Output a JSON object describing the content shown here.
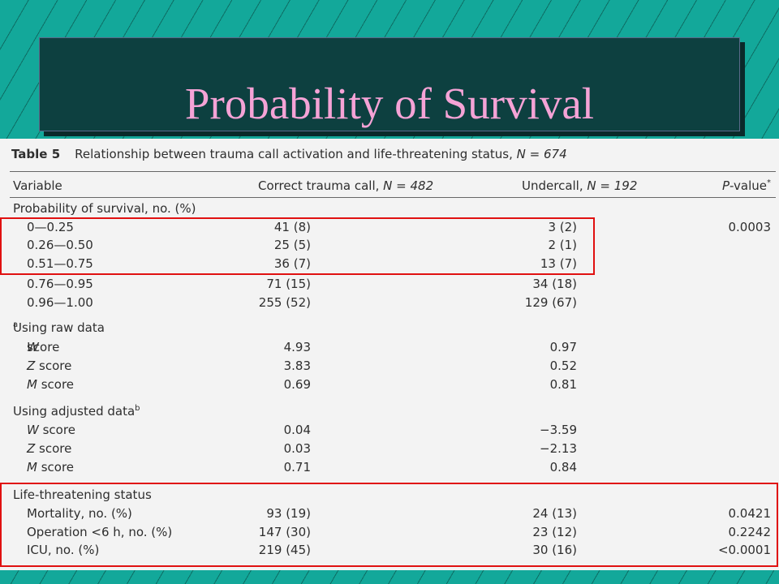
{
  "slide_title": "Probability of Survival",
  "table": {
    "caption_label": "Table 5",
    "caption_text": "Relationship between trauma call activation and life-threatening status,",
    "caption_n": "N = 674",
    "headers": {
      "variable": "Variable",
      "correct": "Correct trauma call,",
      "correct_n": "N = 482",
      "undercall": "Undercall,",
      "undercall_n": "N = 192",
      "pvalue_p": "P",
      "pvalue_rest": "-value",
      "pvalue_mark": "*"
    },
    "sections": {
      "survival": "Probability of survival, no. (%)",
      "raw": "Using raw data",
      "raw_mark": "a",
      "adjusted": "Using adjusted data",
      "adjusted_mark": "b",
      "life": "Life-threatening status"
    },
    "survival_rows": [
      {
        "variable": "0—0.25",
        "correct": "41 (8)",
        "undercall": "3 (2)",
        "pvalue": "0.0003"
      },
      {
        "variable": "0.26—0.50",
        "correct": "25 (5)",
        "undercall": "2 (1)",
        "pvalue": ""
      },
      {
        "variable": "0.51—0.75",
        "correct": "36 (7)",
        "undercall": "13 (7)",
        "pvalue": ""
      },
      {
        "variable": "0.76—0.95",
        "correct": "71 (15)",
        "undercall": "34 (18)",
        "pvalue": ""
      },
      {
        "variable": "0.96—1.00",
        "correct": "255 (52)",
        "undercall": "129 (67)",
        "pvalue": ""
      }
    ],
    "raw_rows": [
      {
        "letter": "W",
        "rest": " score",
        "correct": "4.93",
        "undercall": "0.97"
      },
      {
        "letter": "Z",
        "rest": " score",
        "correct": "3.83",
        "undercall": "0.52"
      },
      {
        "letter": "M",
        "rest": " score",
        "correct": "0.69",
        "undercall": "0.81"
      }
    ],
    "adjusted_rows": [
      {
        "letter": "W",
        "rest": " score",
        "correct": "0.04",
        "undercall": "−3.59"
      },
      {
        "letter": "Z",
        "rest": " score",
        "correct": "0.03",
        "undercall": "−2.13"
      },
      {
        "letter": "M",
        "rest": " score",
        "correct": "0.71",
        "undercall": "0.84"
      }
    ],
    "life_rows": [
      {
        "variable": "Mortality, no. (%)",
        "correct": "93 (19)",
        "undercall": "24 (13)",
        "pvalue": "0.0421"
      },
      {
        "variable": "Operation <6 h, no. (%)",
        "correct": "147 (30)",
        "undercall": "23 (12)",
        "pvalue": "0.2242"
      },
      {
        "variable": "ICU, no. (%)",
        "correct": "219 (45)",
        "undercall": "30 (16)",
        "pvalue": "<0.0001"
      }
    ]
  },
  "colors": {
    "background": "#13a89a",
    "title_box": "#0d4040",
    "title_text": "#f5a3d6",
    "highlight": "#e01010"
  }
}
